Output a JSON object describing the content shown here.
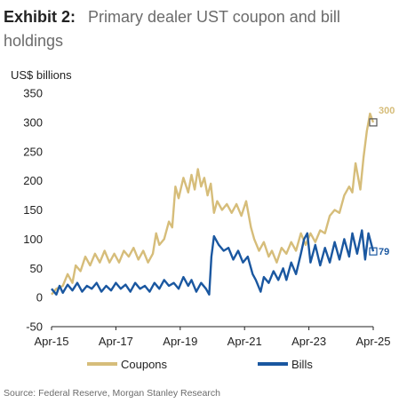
{
  "header": {
    "exhibit": "Exhibit 2:",
    "title": "Primary dealer UST coupon and bill holdings"
  },
  "source": "Source: Federal Reserve, Morgan Stanley Research",
  "colors": {
    "coupons": "#d6bd7a",
    "bills": "#1a57a0",
    "axis": "#222222"
  },
  "chart_data": {
    "type": "line",
    "title": "Primary dealer UST coupon and bill holdings",
    "ylabel": "US$ billions",
    "xlabel": "",
    "ylim": [
      -50,
      350
    ],
    "yticks": [
      -50,
      0,
      50,
      100,
      150,
      200,
      250,
      300,
      350
    ],
    "xlim": [
      2015.25,
      2025.25
    ],
    "xticks": [
      {
        "value": 2015.25,
        "label": "Apr-15"
      },
      {
        "value": 2017.25,
        "label": "Apr-17"
      },
      {
        "value": 2019.25,
        "label": "Apr-19"
      },
      {
        "value": 2021.25,
        "label": "Apr-21"
      },
      {
        "value": 2023.25,
        "label": "Apr-23"
      },
      {
        "value": 2025.25,
        "label": "Apr-25"
      }
    ],
    "legend": "bottom",
    "grid": false,
    "series": [
      {
        "name": "Coupons",
        "end_label": "300",
        "points": [
          [
            2015.25,
            5
          ],
          [
            2015.4,
            15
          ],
          [
            2015.6,
            20
          ],
          [
            2015.75,
            40
          ],
          [
            2015.9,
            25
          ],
          [
            2016.0,
            55
          ],
          [
            2016.15,
            45
          ],
          [
            2016.3,
            70
          ],
          [
            2016.45,
            55
          ],
          [
            2016.6,
            75
          ],
          [
            2016.75,
            60
          ],
          [
            2016.9,
            80
          ],
          [
            2017.05,
            60
          ],
          [
            2017.2,
            75
          ],
          [
            2017.35,
            60
          ],
          [
            2017.5,
            80
          ],
          [
            2017.65,
            70
          ],
          [
            2017.8,
            85
          ],
          [
            2017.95,
            65
          ],
          [
            2018.1,
            80
          ],
          [
            2018.25,
            60
          ],
          [
            2018.4,
            75
          ],
          [
            2018.5,
            110
          ],
          [
            2018.6,
            90
          ],
          [
            2018.75,
            100
          ],
          [
            2018.9,
            130
          ],
          [
            2019.0,
            120
          ],
          [
            2019.1,
            190
          ],
          [
            2019.2,
            170
          ],
          [
            2019.35,
            205
          ],
          [
            2019.5,
            180
          ],
          [
            2019.6,
            210
          ],
          [
            2019.7,
            185
          ],
          [
            2019.8,
            220
          ],
          [
            2019.9,
            190
          ],
          [
            2020.0,
            205
          ],
          [
            2020.1,
            175
          ],
          [
            2020.2,
            195
          ],
          [
            2020.3,
            145
          ],
          [
            2020.4,
            165
          ],
          [
            2020.55,
            150
          ],
          [
            2020.7,
            160
          ],
          [
            2020.85,
            145
          ],
          [
            2021.0,
            160
          ],
          [
            2021.15,
            140
          ],
          [
            2021.3,
            165
          ],
          [
            2021.45,
            120
          ],
          [
            2021.55,
            100
          ],
          [
            2021.7,
            80
          ],
          [
            2021.85,
            95
          ],
          [
            2022.0,
            70
          ],
          [
            2022.1,
            80
          ],
          [
            2022.25,
            60
          ],
          [
            2022.4,
            85
          ],
          [
            2022.55,
            75
          ],
          [
            2022.7,
            95
          ],
          [
            2022.85,
            80
          ],
          [
            2023.0,
            110
          ],
          [
            2023.15,
            90
          ],
          [
            2023.3,
            110
          ],
          [
            2023.45,
            95
          ],
          [
            2023.6,
            115
          ],
          [
            2023.75,
            110
          ],
          [
            2023.9,
            140
          ],
          [
            2024.05,
            150
          ],
          [
            2024.2,
            145
          ],
          [
            2024.35,
            175
          ],
          [
            2024.5,
            190
          ],
          [
            2024.6,
            180
          ],
          [
            2024.7,
            230
          ],
          [
            2024.8,
            200
          ],
          [
            2024.85,
            185
          ],
          [
            2024.95,
            240
          ],
          [
            2025.05,
            285
          ],
          [
            2025.15,
            315
          ],
          [
            2025.25,
            300
          ]
        ]
      },
      {
        "name": "Bills",
        "end_label": "79",
        "points": [
          [
            2015.25,
            15
          ],
          [
            2015.4,
            5
          ],
          [
            2015.5,
            20
          ],
          [
            2015.6,
            8
          ],
          [
            2015.75,
            22
          ],
          [
            2015.9,
            12
          ],
          [
            2016.05,
            25
          ],
          [
            2016.2,
            10
          ],
          [
            2016.35,
            20
          ],
          [
            2016.5,
            15
          ],
          [
            2016.65,
            25
          ],
          [
            2016.8,
            10
          ],
          [
            2016.95,
            20
          ],
          [
            2017.1,
            12
          ],
          [
            2017.25,
            25
          ],
          [
            2017.4,
            15
          ],
          [
            2017.55,
            22
          ],
          [
            2017.7,
            10
          ],
          [
            2017.85,
            25
          ],
          [
            2018.0,
            15
          ],
          [
            2018.15,
            20
          ],
          [
            2018.3,
            10
          ],
          [
            2018.45,
            25
          ],
          [
            2018.6,
            15
          ],
          [
            2018.75,
            30
          ],
          [
            2018.9,
            20
          ],
          [
            2019.05,
            25
          ],
          [
            2019.2,
            15
          ],
          [
            2019.35,
            35
          ],
          [
            2019.5,
            20
          ],
          [
            2019.6,
            30
          ],
          [
            2019.75,
            10
          ],
          [
            2019.9,
            25
          ],
          [
            2020.05,
            15
          ],
          [
            2020.15,
            5
          ],
          [
            2020.22,
            70
          ],
          [
            2020.3,
            105
          ],
          [
            2020.45,
            90
          ],
          [
            2020.6,
            80
          ],
          [
            2020.75,
            85
          ],
          [
            2020.9,
            65
          ],
          [
            2021.05,
            80
          ],
          [
            2021.2,
            60
          ],
          [
            2021.35,
            70
          ],
          [
            2021.5,
            40
          ],
          [
            2021.6,
            30
          ],
          [
            2021.75,
            10
          ],
          [
            2021.85,
            35
          ],
          [
            2022.0,
            25
          ],
          [
            2022.15,
            45
          ],
          [
            2022.3,
            30
          ],
          [
            2022.45,
            50
          ],
          [
            2022.55,
            30
          ],
          [
            2022.7,
            60
          ],
          [
            2022.85,
            40
          ],
          [
            2023.0,
            75
          ],
          [
            2023.1,
            100
          ],
          [
            2023.2,
            110
          ],
          [
            2023.3,
            60
          ],
          [
            2023.45,
            90
          ],
          [
            2023.6,
            55
          ],
          [
            2023.75,
            85
          ],
          [
            2023.9,
            60
          ],
          [
            2024.05,
            95
          ],
          [
            2024.2,
            65
          ],
          [
            2024.35,
            100
          ],
          [
            2024.5,
            70
          ],
          [
            2024.6,
            110
          ],
          [
            2024.75,
            75
          ],
          [
            2024.9,
            115
          ],
          [
            2025.0,
            65
          ],
          [
            2025.1,
            110
          ],
          [
            2025.25,
            79
          ]
        ]
      }
    ]
  }
}
